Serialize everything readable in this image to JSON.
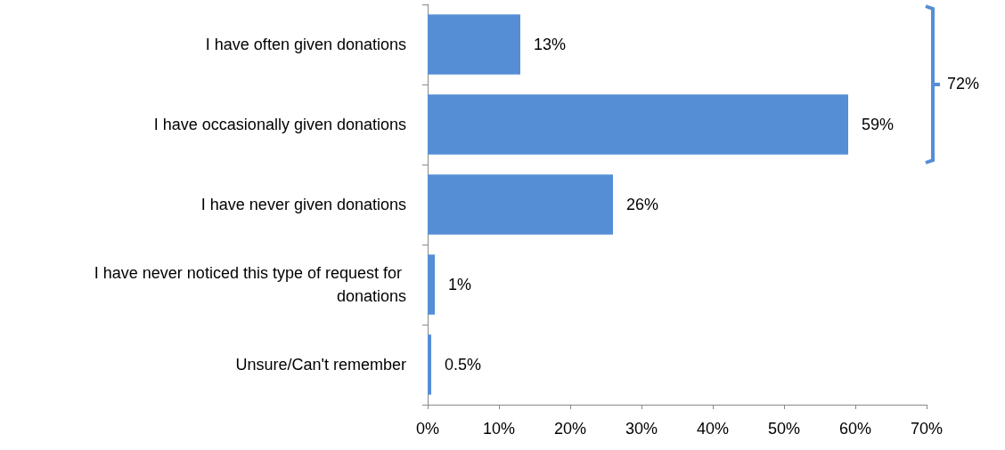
{
  "chart_data": {
    "type": "bar",
    "orientation": "horizontal",
    "categories": [
      "I have often given donations",
      "I have occasionally given donations",
      "I have never given donations",
      "I have never noticed this type of request for donations",
      "Unsure/Can't remember"
    ],
    "values": [
      13,
      59,
      26,
      1,
      0.5
    ],
    "value_labels": [
      "13%",
      "59%",
      "26%",
      "1%",
      "0.5%"
    ],
    "color": "#558ed5",
    "xlim": [
      0,
      70
    ],
    "xticks": [
      {
        "value": 0,
        "label": "0%"
      },
      {
        "value": 10,
        "label": "10%"
      },
      {
        "value": 20,
        "label": "20%"
      },
      {
        "value": 30,
        "label": "30%"
      },
      {
        "value": 40,
        "label": "40%"
      },
      {
        "value": 50,
        "label": "50%"
      },
      {
        "value": 60,
        "label": "60%"
      },
      {
        "value": 70,
        "label": "70%"
      }
    ],
    "annotations": [
      "72%"
    ],
    "grid": false
  }
}
